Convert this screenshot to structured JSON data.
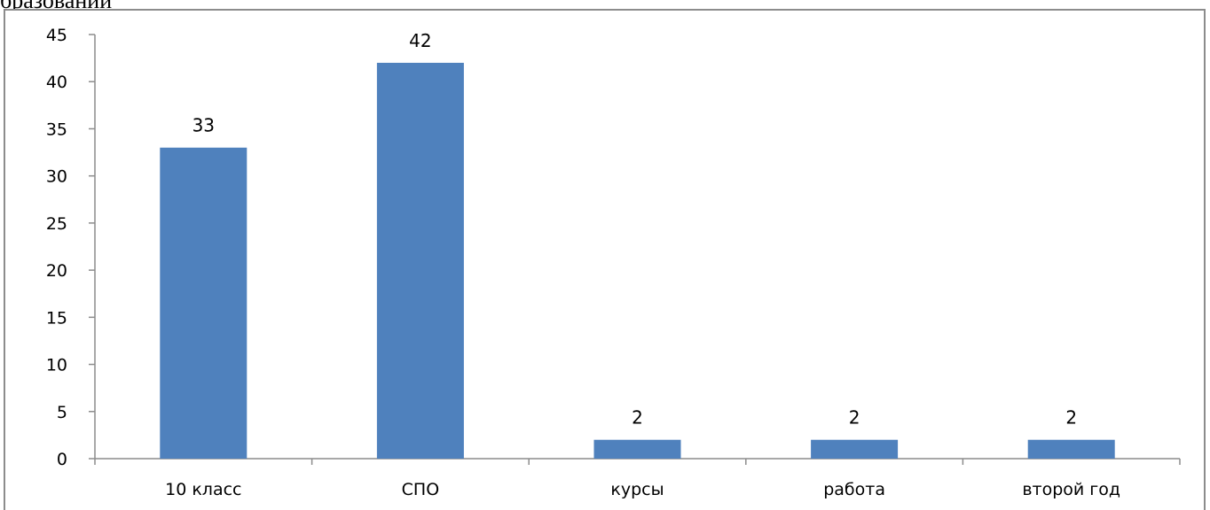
{
  "page": {
    "top_text": "бразовании"
  },
  "colors": {
    "bar": "#4f81bd",
    "axis": "#8c8c8c",
    "frame": "#8c8c8c",
    "text": "#000000"
  },
  "chart_data": {
    "type": "bar",
    "categories": [
      "10 класс",
      "СПО",
      "курсы",
      "работа",
      "второй год"
    ],
    "values": [
      33,
      42,
      2,
      2,
      2
    ],
    "data_labels": [
      "33",
      "42",
      "2",
      "2",
      "2"
    ],
    "title": "",
    "xlabel": "",
    "ylabel": "",
    "ylim": [
      0,
      45
    ],
    "yticks": [
      0,
      5,
      10,
      15,
      20,
      25,
      30,
      35,
      40,
      45
    ],
    "grid": false,
    "legend": "none"
  }
}
